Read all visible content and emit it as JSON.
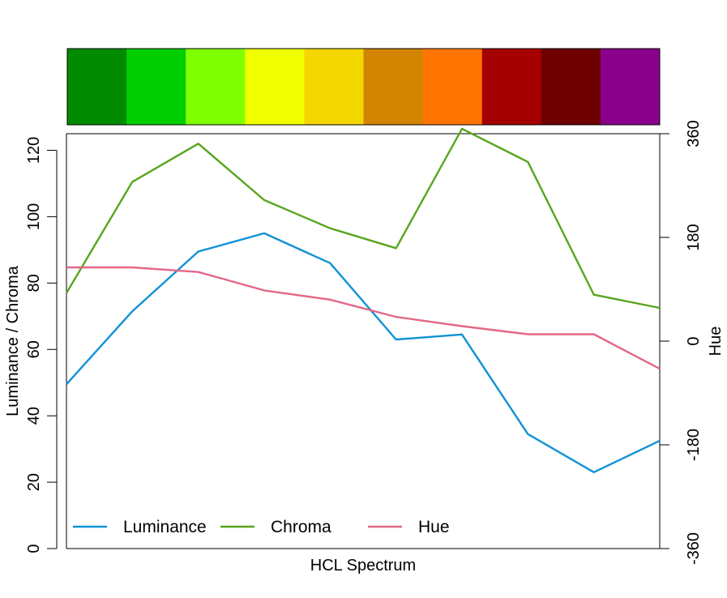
{
  "chart_data": {
    "type": "line",
    "xlabel": "HCL Spectrum",
    "ylabel": "Luminance / Chroma",
    "ylabel_right": "Hue",
    "ylim": [
      0,
      125
    ],
    "ylim_right": [
      -360,
      360
    ],
    "yticks": [
      "0",
      "20",
      "40",
      "60",
      "80",
      "100",
      "120"
    ],
    "yticks_right": [
      "-360",
      "-180",
      "0",
      "180",
      "360"
    ],
    "x": [
      1,
      2,
      3,
      4,
      5,
      6,
      7,
      8,
      9,
      10
    ],
    "series": [
      {
        "name": "Luminance",
        "axis": "left",
        "color": "#1192d6",
        "values": [
          49.5,
          71.5,
          89.5,
          95,
          86,
          63,
          64.5,
          34.5,
          23,
          32.5
        ]
      },
      {
        "name": "Chroma",
        "axis": "left",
        "color": "#58a51f",
        "values": [
          77,
          110.5,
          122,
          105,
          96.5,
          90.5,
          126.5,
          116.5,
          76.5,
          72.5
        ]
      },
      {
        "name": "Hue",
        "axis": "right",
        "color": "#e26887",
        "values": [
          128,
          128,
          120,
          88,
          72,
          42,
          26,
          12,
          12,
          -48
        ]
      }
    ],
    "swatches": [
      "#008b00",
      "#00cd00",
      "#80ff00",
      "#f0ff00",
      "#f5d700",
      "#d28500",
      "#ff7400",
      "#a40000",
      "#6e0000",
      "#8b008b"
    ],
    "legend_placement": "bottom-left",
    "grid": false
  }
}
